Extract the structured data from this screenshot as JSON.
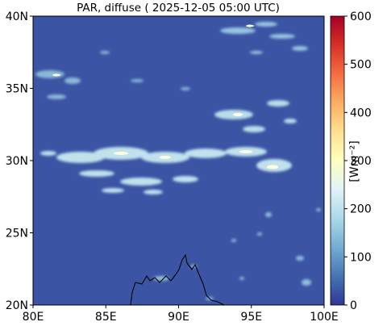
{
  "title": "PAR, diffuse ( 2025-12-05 05:00 UTC)",
  "map": {
    "lon_range": [
      80,
      100
    ],
    "lat_range": [
      20,
      40
    ],
    "x_ticks": [
      "80E",
      "85E",
      "90E",
      "95E",
      "100E"
    ],
    "y_ticks": [
      "40N",
      "35N",
      "30N",
      "25N",
      "20N"
    ],
    "background_color": "#3b55a4"
  },
  "colorbar": {
    "label": "[Wm⁻²]",
    "range": [
      0,
      600
    ],
    "ticks": [
      "600",
      "500",
      "400",
      "300",
      "200",
      "100",
      "0"
    ],
    "colors": [
      "#313695",
      "#4575b4",
      "#74add1",
      "#abd9e9",
      "#e0f3f8",
      "#ffffbf",
      "#fee090",
      "#fdae61",
      "#f46d43",
      "#d73027",
      "#a50026"
    ]
  }
}
